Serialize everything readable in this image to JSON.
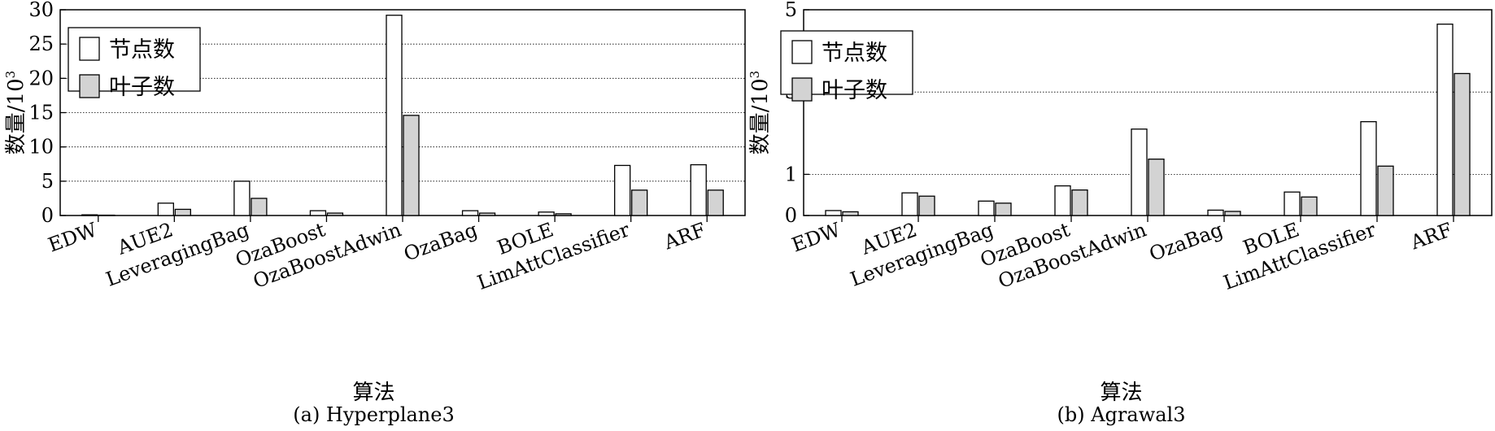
{
  "chart_data": [
    {
      "type": "bar",
      "caption": "(a) Hyperplane3",
      "xlabel": "算法",
      "ylabel": "数量/10",
      "ylabel_exp": "3",
      "categories": [
        "EDW",
        "AUE2",
        "LeveragingBag",
        "OzaBoost",
        "OzaBoostAdwin",
        "OzaBag",
        "BOLE",
        "LimAttClassifier",
        "ARF"
      ],
      "series": [
        {
          "name": "节点数",
          "color": "#ffffff",
          "values": [
            0.1,
            1.8,
            5.0,
            0.7,
            29.2,
            0.7,
            0.5,
            7.3,
            7.4
          ]
        },
        {
          "name": "叶子数",
          "color": "#d3d3d3",
          "values": [
            0.05,
            0.9,
            2.5,
            0.35,
            14.6,
            0.35,
            0.25,
            3.7,
            3.7
          ]
        }
      ],
      "ylim": [
        0,
        30
      ],
      "yticks": [
        0,
        5,
        10,
        15,
        20,
        25,
        30
      ],
      "grid": true,
      "legend_position": "top-left"
    },
    {
      "type": "bar",
      "caption": "(b) Agrawal3",
      "xlabel": "算法",
      "ylabel": "数量/10",
      "ylabel_exp": "3",
      "categories": [
        "EDW",
        "AUE2",
        "LeveragingBag",
        "OzaBoost",
        "OzaBoostAdwin",
        "OzaBag",
        "BOLE",
        "LimAttClassifier",
        "ARF"
      ],
      "series": [
        {
          "name": "节点数",
          "color": "#ffffff",
          "values": [
            0.12,
            0.55,
            0.35,
            0.72,
            2.1,
            0.13,
            0.57,
            2.28,
            4.65
          ]
        },
        {
          "name": "叶子数",
          "color": "#d3d3d3",
          "values": [
            0.09,
            0.47,
            0.3,
            0.62,
            1.37,
            0.1,
            0.45,
            1.2,
            3.45
          ]
        }
      ],
      "ylim": [
        0,
        5
      ],
      "yticks": [
        0,
        1,
        3,
        5
      ],
      "grid": true,
      "legend_position": "top-left"
    }
  ]
}
